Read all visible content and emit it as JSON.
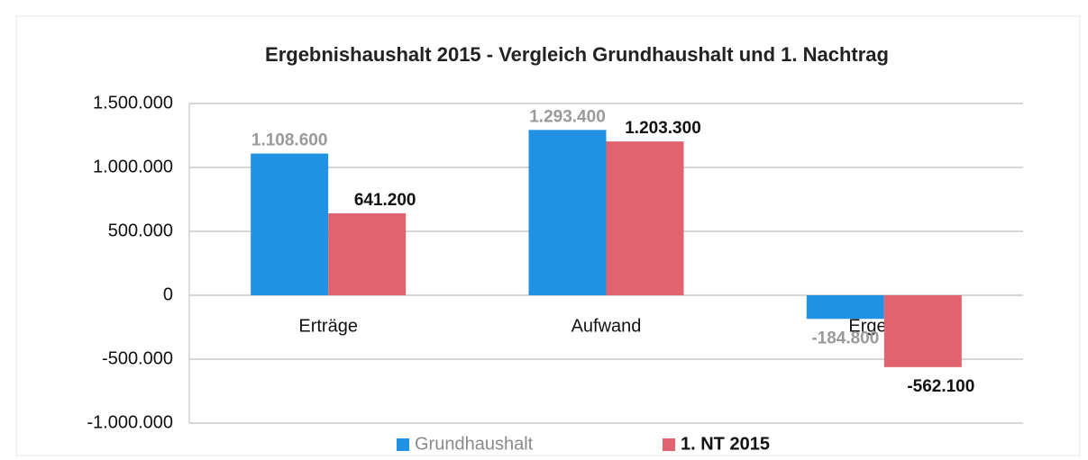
{
  "chart_data": {
    "type": "bar",
    "title": "Ergebnishaushalt 2015 - Vergleich Grundhaushalt und 1. Nachtrag",
    "categories": [
      "Erträge",
      "Aufwand",
      "Ergebnis"
    ],
    "series": [
      {
        "name": "Grundhaushalt",
        "color": "#2191e3",
        "values": [
          1108600,
          1293400,
          -184800
        ],
        "value_labels": [
          "1.108.600",
          "1.293.400",
          "-184.800"
        ]
      },
      {
        "name": "1. NT 2015",
        "color": "#e0636f",
        "values": [
          641200,
          1203300,
          -562100
        ],
        "value_labels": [
          "641.200",
          "1.203.300",
          "-562.100"
        ]
      }
    ],
    "ylim": [
      -1000000,
      1500000
    ],
    "yticks": [
      {
        "value": -1000000,
        "label": "-1.000.000"
      },
      {
        "value": -500000,
        "label": "-500.000"
      },
      0,
      {
        "value": 500000,
        "label": "500.000"
      },
      {
        "value": 1000000,
        "label": "1.000.000"
      },
      {
        "value": 1500000,
        "label": "1.500.000"
      }
    ],
    "grid": true,
    "legend": "bottom"
  }
}
